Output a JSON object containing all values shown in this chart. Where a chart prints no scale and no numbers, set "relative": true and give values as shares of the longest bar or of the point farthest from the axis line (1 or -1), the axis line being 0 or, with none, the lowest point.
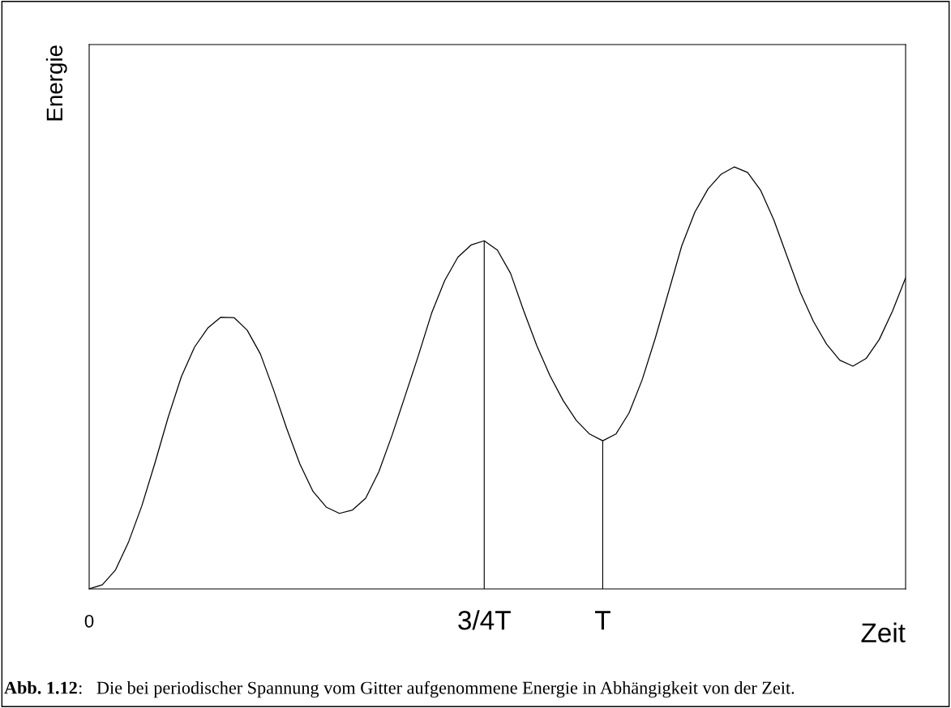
{
  "chart_data": {
    "type": "line",
    "relative": true,
    "xlabel": "Zeit",
    "ylabel": "Energie",
    "categories": [
      "0",
      null,
      null,
      null,
      null,
      null,
      null,
      null,
      null,
      null,
      null,
      null,
      null,
      null,
      null,
      null,
      null,
      null,
      null,
      null,
      null,
      null,
      null,
      null,
      null,
      null,
      null,
      null,
      null,
      null,
      "3/4T",
      null,
      null,
      null,
      null,
      null,
      null,
      null,
      null,
      "T",
      null,
      null,
      null,
      null,
      null,
      null,
      null,
      null,
      null,
      null,
      null,
      null,
      null,
      null,
      null,
      null,
      null,
      null,
      null,
      null,
      null,
      null,
      null
    ],
    "annotations": [
      "Abb. 1.12",
      ":   Die bei periodischer Spannung vom Gitter aufgenommene Energie in Abhängigkeit von der Zeit."
    ],
    "series": [
      {
        "color": "#000000",
        "values": [
          0,
          0.01,
          0.045,
          0.112,
          0.197,
          0.299,
          0.407,
          0.503,
          0.573,
          0.618,
          0.644,
          0.643,
          0.613,
          0.557,
          0.472,
          0.38,
          0.296,
          0.231,
          0.194,
          0.179,
          0.187,
          0.215,
          0.278,
          0.364,
          0.458,
          0.553,
          0.653,
          0.731,
          0.786,
          0.815,
          0.825,
          0.803,
          0.748,
          0.659,
          0.576,
          0.505,
          0.446,
          0.399,
          0.367,
          0.351,
          0.367,
          0.417,
          0.496,
          0.595,
          0.704,
          0.813,
          0.893,
          0.948,
          0.983,
          1,
          0.987,
          0.944,
          0.874,
          0.788,
          0.703,
          0.634,
          0.58,
          0.542,
          0.528,
          0.546,
          0.591,
          0.658,
          0.737
        ]
      },
      {
        "type": "bar",
        "color": "#000000",
        "values": [
          null,
          null,
          null,
          null,
          null,
          null,
          null,
          null,
          null,
          null,
          null,
          null,
          null,
          null,
          null,
          null,
          null,
          null,
          null,
          null,
          null,
          null,
          null,
          null,
          null,
          null,
          null,
          null,
          null,
          null,
          0.825,
          null,
          null,
          null,
          null,
          null,
          null,
          null,
          null,
          0.351,
          null,
          null,
          null,
          null,
          null,
          null,
          null,
          null,
          null,
          null,
          null,
          null,
          null,
          null,
          null,
          null,
          null,
          null,
          null,
          null,
          null,
          null,
          null
        ]
      }
    ]
  }
}
